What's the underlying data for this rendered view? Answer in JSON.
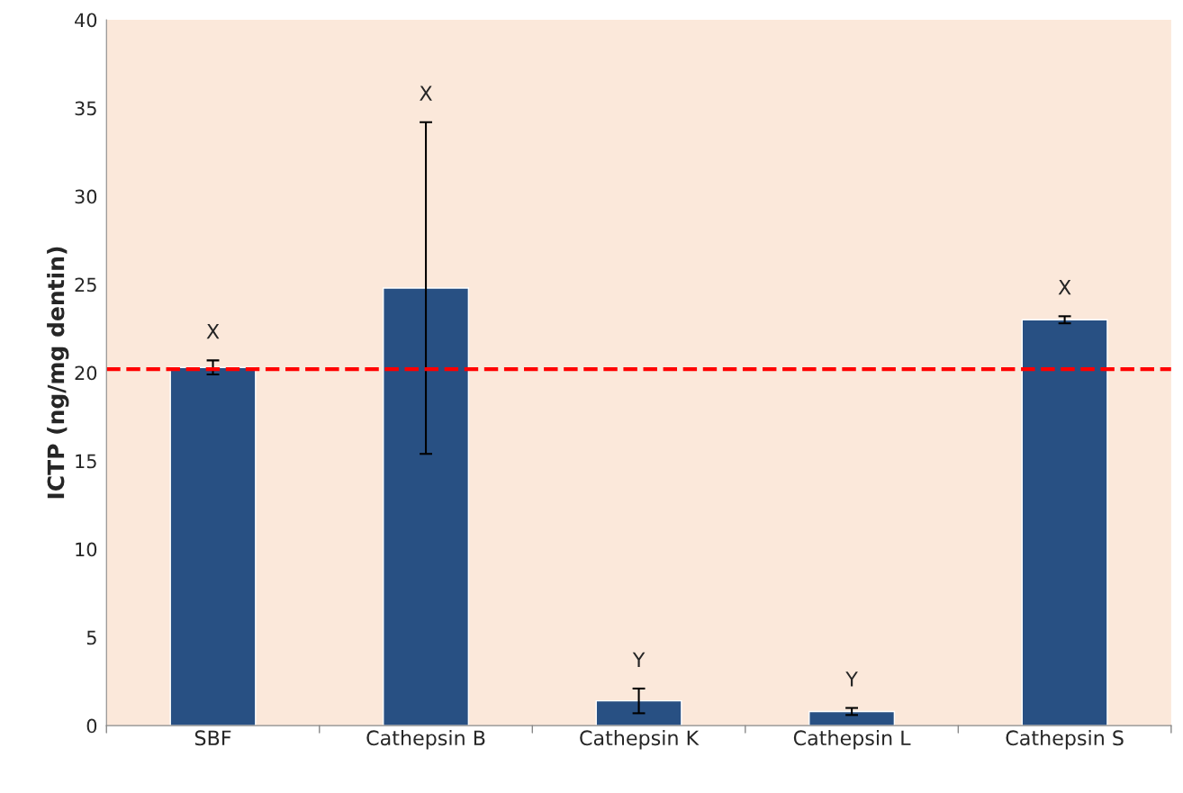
{
  "chart_data": {
    "type": "bar",
    "ylabel": "ICTP (ng/mg dentin)",
    "categories": [
      "SBF",
      "Cathepsin B",
      "Cathepsin K",
      "Cathepsin L",
      "Cathepsin S"
    ],
    "values": [
      20.3,
      24.8,
      1.4,
      0.8,
      23.0
    ],
    "errors": [
      0.4,
      9.4,
      0.7,
      0.2,
      0.2
    ],
    "color": "#285083",
    "ylim": [
      0,
      40
    ],
    "yticks": [
      0,
      5,
      10,
      15,
      20,
      25,
      30,
      35,
      40
    ],
    "grid": false,
    "legend": false,
    "ref_lines": [
      {
        "axis": "y",
        "value": 20.2,
        "color": "#ff0000",
        "line_style": "dashed"
      }
    ],
    "annotations": [
      "X",
      "X",
      "Y",
      "Y",
      "X"
    ]
  }
}
